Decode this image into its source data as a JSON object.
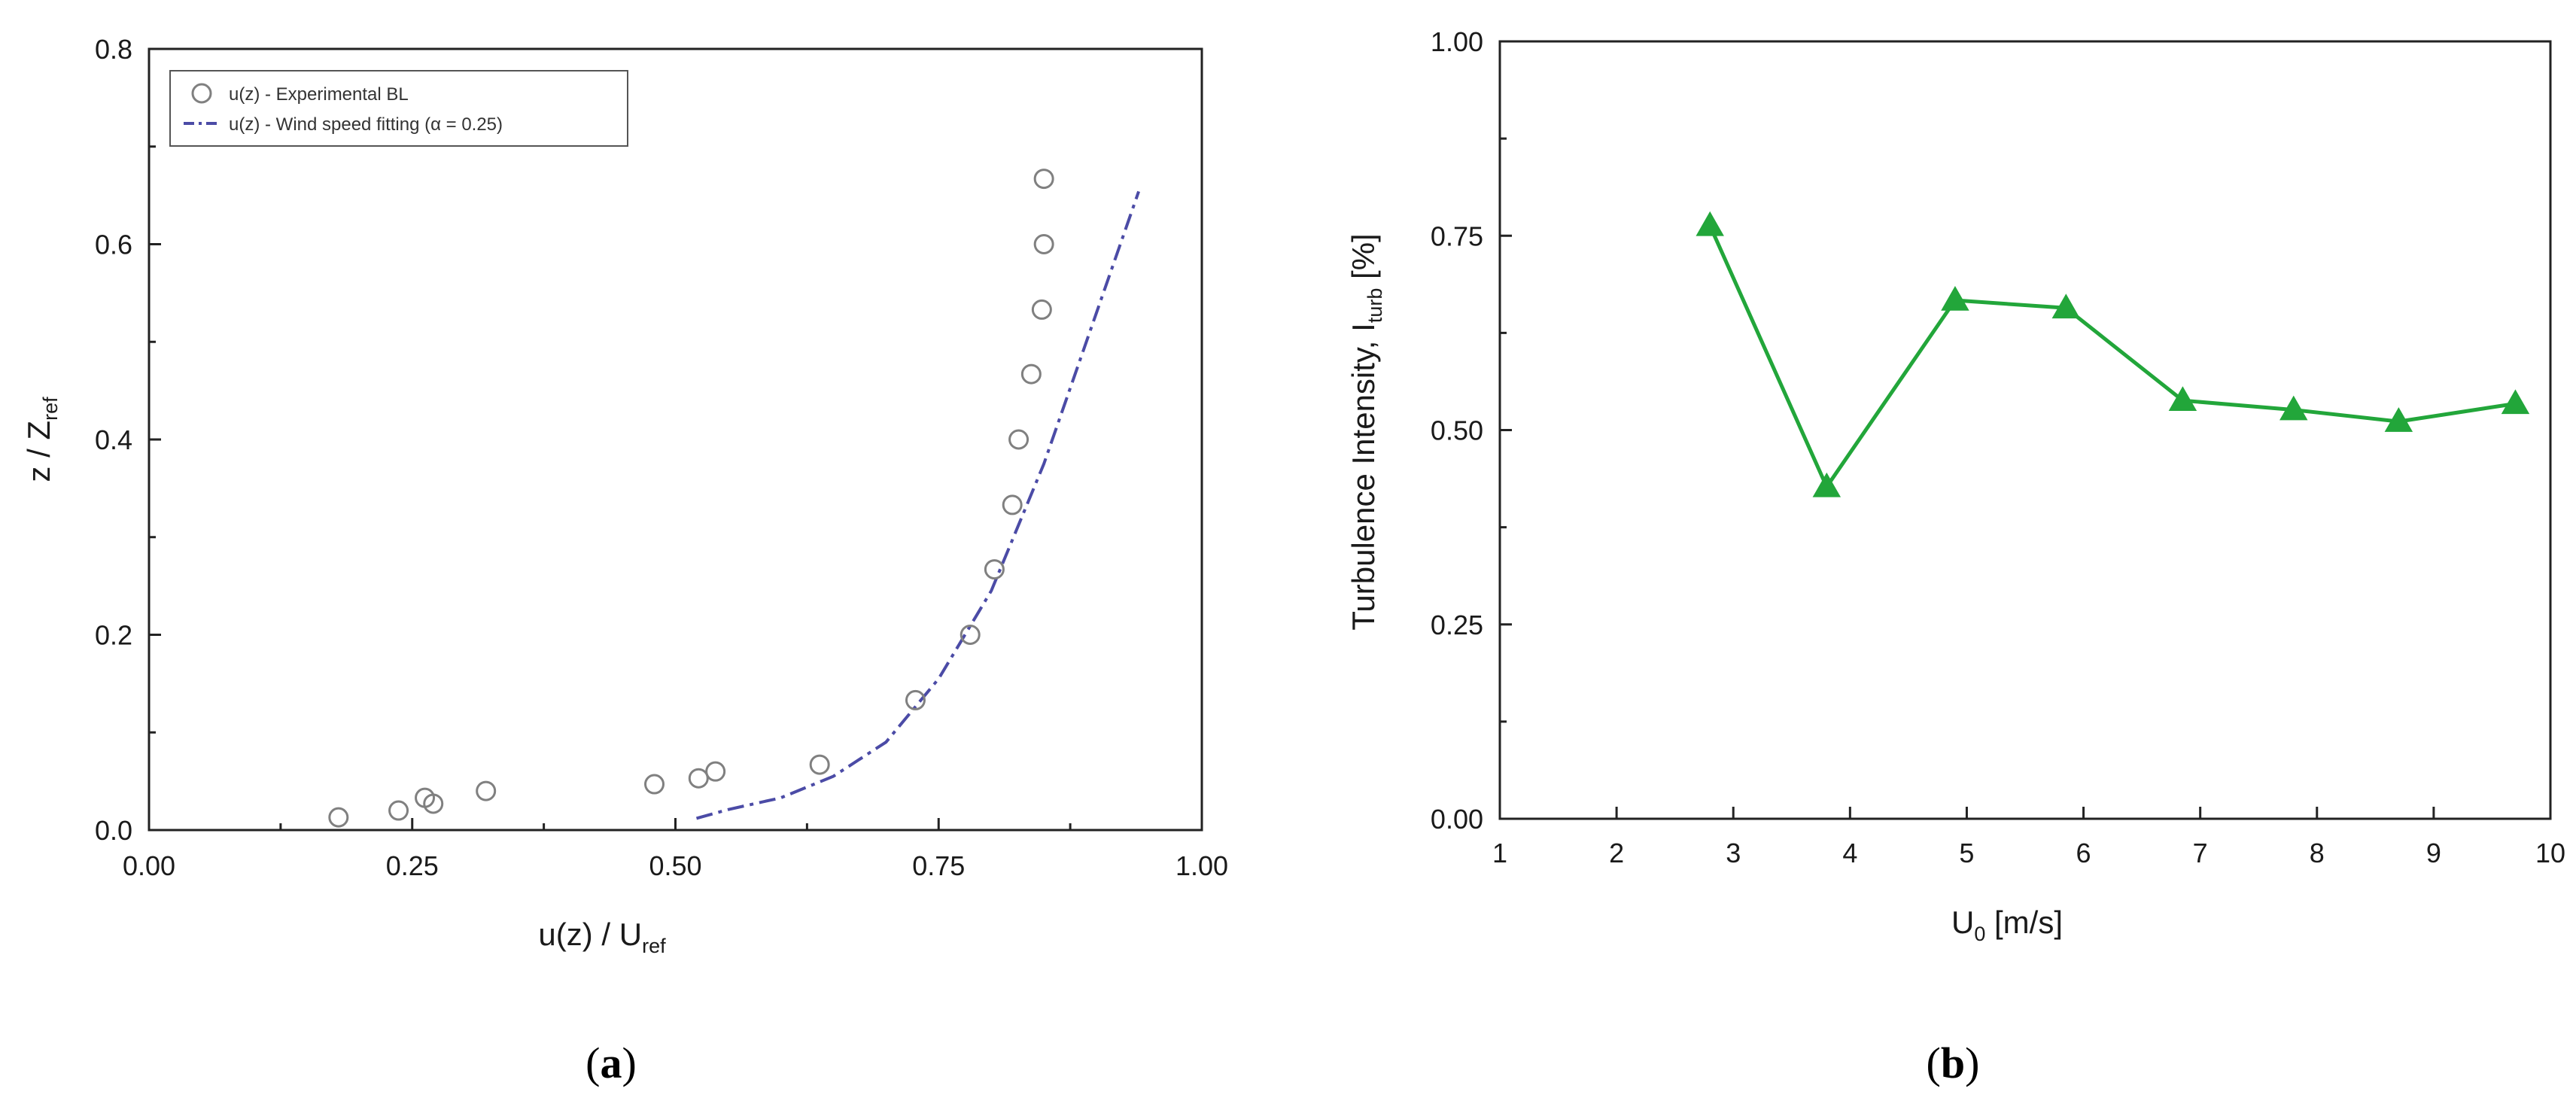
{
  "chart_data": [
    {
      "type": "scatter",
      "caption": {
        "open": "(",
        "letter": "a",
        "close": ")"
      },
      "xlabel": {
        "main": "u(z) / U",
        "sub": "ref"
      },
      "ylabel": {
        "main": "z / Z",
        "sub": "ref"
      },
      "xlim": [
        0.0,
        1.0
      ],
      "ylim": [
        0.0,
        0.8
      ],
      "xticks": [
        "0.00",
        "0.25",
        "0.50",
        "0.75",
        "1.00"
      ],
      "yticks": [
        "0.0",
        "0.2",
        "0.4",
        "0.6",
        "0.8"
      ],
      "legend_position": "top-left",
      "series": [
        {
          "name": "u(z) - Experimental BL",
          "style": "open-circle",
          "color": "#808080",
          "x": [
            0.18,
            0.237,
            0.262,
            0.27,
            0.32,
            0.48,
            0.522,
            0.538,
            0.637,
            0.728,
            0.78,
            0.803,
            0.82,
            0.826,
            0.838,
            0.848,
            0.85,
            0.85
          ],
          "y": [
            0.013,
            0.02,
            0.033,
            0.027,
            0.04,
            0.047,
            0.053,
            0.06,
            0.067,
            0.133,
            0.2,
            0.267,
            0.333,
            0.4,
            0.467,
            0.533,
            0.6,
            0.667
          ]
        },
        {
          "name": "u(z) - Wind speed fitting (α = 0.25)",
          "style": "dash-dot-line",
          "color": "#4b4ba6",
          "x": [
            0.52,
            0.55,
            0.6,
            0.65,
            0.7,
            0.75,
            0.8,
            0.85,
            0.9,
            0.94
          ],
          "y": [
            0.012,
            0.021,
            0.033,
            0.055,
            0.09,
            0.155,
            0.245,
            0.375,
            0.53,
            0.654
          ]
        }
      ]
    },
    {
      "type": "line",
      "caption": {
        "open": "(",
        "letter": "b",
        "close": ")"
      },
      "xlabel": {
        "main": "U",
        "sub": "0",
        "rest": " [m/s]"
      },
      "ylabel": {
        "main": "Turbulence Intensity, I",
        "sub": "turb",
        "rest": " [%]"
      },
      "xlim": [
        1,
        10
      ],
      "ylim": [
        0.0,
        1.0
      ],
      "xticks": [
        "1",
        "2",
        "3",
        "4",
        "5",
        "6",
        "7",
        "8",
        "9",
        "10"
      ],
      "yticks": [
        "0.00",
        "0.25",
        "0.50",
        "0.75",
        "1.00"
      ],
      "series": [
        {
          "style": "triangle-line",
          "color": "#22a63a",
          "x": [
            2.8,
            3.8,
            4.9,
            5.85,
            6.85,
            7.8,
            8.7,
            9.7
          ],
          "y": [
            0.763,
            0.427,
            0.667,
            0.657,
            0.538,
            0.526,
            0.511,
            0.534
          ]
        }
      ]
    }
  ]
}
